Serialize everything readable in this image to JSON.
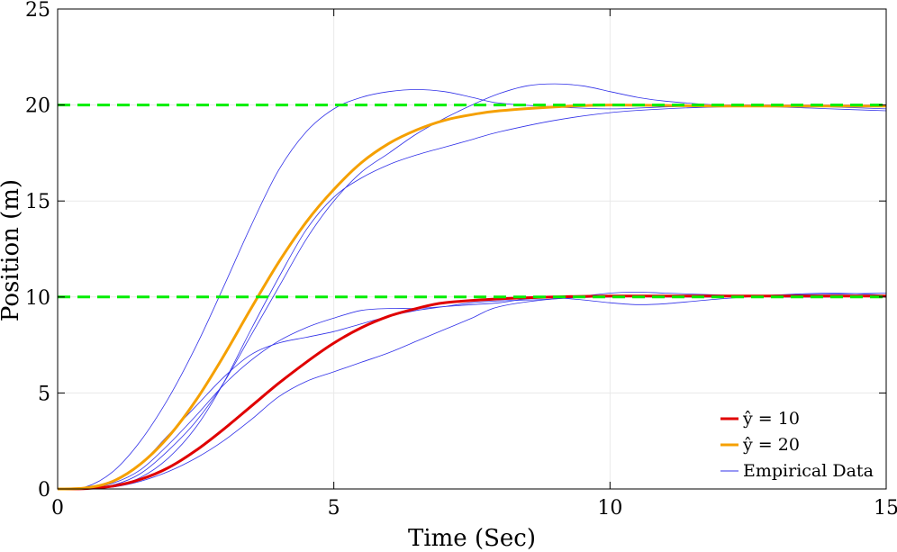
{
  "chart_data": {
    "type": "line",
    "title": "",
    "xlabel": "Time (Sec)",
    "ylabel": "Position (m)",
    "xlim": [
      0,
      15
    ],
    "ylim": [
      0,
      25
    ],
    "xticks": [
      0,
      5,
      10,
      15
    ],
    "yticks": [
      0,
      5,
      10,
      15,
      20,
      25
    ],
    "grid": true,
    "legend_position": "bottom-right",
    "references": [
      {
        "name": "reference-10",
        "y": 10,
        "color": "#00ee00",
        "style": "dashed"
      },
      {
        "name": "reference-20",
        "y": 20,
        "color": "#00ee00",
        "style": "dashed"
      }
    ],
    "series": [
      {
        "name": "y-hat-10",
        "legend": "ŷ = 10",
        "color": "#e00000",
        "width": 3,
        "x": [
          0,
          0.5,
          1,
          1.5,
          2,
          2.5,
          3,
          3.5,
          4,
          4.5,
          5,
          5.5,
          6,
          6.5,
          7,
          8,
          9,
          10,
          12,
          15
        ],
        "y": [
          0,
          0.02,
          0.15,
          0.5,
          1.1,
          2.0,
          3.1,
          4.3,
          5.5,
          6.6,
          7.6,
          8.4,
          9.0,
          9.4,
          9.7,
          9.9,
          10.0,
          10.05,
          10.05,
          10.05
        ]
      },
      {
        "name": "y-hat-20",
        "legend": "ŷ = 20",
        "color": "#f5a000",
        "width": 3,
        "x": [
          0,
          0.5,
          1,
          1.5,
          2,
          2.5,
          3,
          3.5,
          4,
          4.5,
          5,
          5.5,
          6,
          6.5,
          7,
          7.5,
          8,
          9,
          10,
          12,
          15
        ],
        "y": [
          0,
          0.05,
          0.4,
          1.3,
          2.7,
          4.6,
          6.9,
          9.4,
          11.8,
          13.9,
          15.6,
          17.0,
          18.0,
          18.7,
          19.2,
          19.5,
          19.7,
          19.9,
          20.0,
          19.95,
          19.95
        ]
      },
      {
        "name": "empirical-run-1",
        "color": "#3030e8",
        "width": 0.8,
        "x": [
          0,
          0.5,
          1,
          1.5,
          2,
          2.5,
          3,
          3.5,
          4,
          4.5,
          5,
          5.5,
          6,
          6.5,
          7,
          7.5,
          8,
          9,
          10,
          11,
          12,
          13,
          14,
          15
        ],
        "y": [
          0,
          0.1,
          0.9,
          2.5,
          4.7,
          7.4,
          10.5,
          13.7,
          16.6,
          18.6,
          19.8,
          20.4,
          20.7,
          20.8,
          20.7,
          20.4,
          20.1,
          19.9,
          19.8,
          19.9,
          20.0,
          20.0,
          20.0,
          20.0
        ]
      },
      {
        "name": "empirical-run-2",
        "color": "#3030e8",
        "width": 0.8,
        "x": [
          0,
          0.5,
          1,
          1.5,
          2,
          2.5,
          3,
          3.5,
          4,
          4.5,
          5,
          5.5,
          6,
          6.5,
          7,
          7.5,
          8,
          8.5,
          9,
          9.5,
          10,
          10.5,
          11,
          12,
          13,
          14,
          15
        ],
        "y": [
          0,
          0.02,
          0.2,
          0.8,
          2.0,
          3.5,
          5.5,
          8.0,
          10.5,
          13.0,
          15.0,
          16.5,
          17.5,
          18.5,
          19.3,
          20.0,
          20.6,
          21.0,
          21.1,
          21.0,
          20.7,
          20.4,
          20.2,
          20.0,
          20.0,
          19.9,
          19.8
        ]
      },
      {
        "name": "empirical-run-3",
        "color": "#3030e8",
        "width": 0.8,
        "x": [
          0,
          0.5,
          1,
          1.5,
          2,
          2.5,
          3,
          3.5,
          4,
          4.5,
          5,
          5.5,
          6,
          6.5,
          7,
          7.5,
          8,
          9,
          10,
          11,
          12,
          13,
          14,
          15
        ],
        "y": [
          0,
          0.02,
          0.15,
          0.6,
          1.6,
          3.2,
          5.5,
          8.3,
          11.0,
          13.5,
          15.2,
          16.2,
          16.9,
          17.4,
          17.8,
          18.2,
          18.6,
          19.2,
          19.6,
          19.8,
          19.9,
          19.9,
          19.8,
          19.7
        ]
      },
      {
        "name": "empirical-run-4",
        "color": "#3030e8",
        "width": 0.8,
        "x": [
          0,
          0.5,
          1,
          1.5,
          2,
          2.5,
          3,
          3.5,
          4,
          4.5,
          5,
          5.5,
          6,
          6.5,
          7,
          7.5,
          8,
          9,
          10,
          10.5,
          11,
          12,
          13,
          14,
          15
        ],
        "y": [
          0,
          0.05,
          0.4,
          1.3,
          2.8,
          4.3,
          5.8,
          7.0,
          7.6,
          7.9,
          8.2,
          8.6,
          9.0,
          9.3,
          9.5,
          9.7,
          9.8,
          9.9,
          10.2,
          10.25,
          10.2,
          10.1,
          10.0,
          10.0,
          10.05
        ]
      },
      {
        "name": "empirical-run-5",
        "color": "#3030e8",
        "width": 0.8,
        "x": [
          0,
          0.5,
          1,
          1.5,
          2,
          2.5,
          3,
          3.5,
          4,
          4.5,
          5,
          5.5,
          6,
          6.5,
          7,
          7.5,
          8,
          8.5,
          9,
          9.5,
          10,
          10.5,
          11,
          12,
          13,
          14,
          15
        ],
        "y": [
          0,
          0.03,
          0.3,
          1.0,
          2.3,
          3.8,
          5.4,
          6.7,
          7.7,
          8.4,
          8.9,
          9.3,
          9.4,
          9.4,
          9.5,
          9.6,
          9.7,
          9.9,
          9.95,
          9.85,
          9.7,
          9.6,
          9.65,
          9.9,
          10.1,
          10.2,
          10.1
        ]
      },
      {
        "name": "empirical-run-6",
        "color": "#3030e8",
        "width": 0.8,
        "x": [
          0,
          0.5,
          1,
          1.5,
          2,
          2.5,
          3,
          3.5,
          4,
          4.5,
          5,
          5.5,
          6,
          6.5,
          7,
          7.5,
          8,
          9,
          10,
          11,
          12,
          13,
          14,
          15
        ],
        "y": [
          0,
          0.01,
          0.1,
          0.4,
          0.9,
          1.6,
          2.5,
          3.6,
          4.8,
          5.6,
          6.1,
          6.6,
          7.1,
          7.7,
          8.3,
          8.9,
          9.5,
          9.9,
          10.0,
          10.0,
          10.0,
          10.1,
          10.15,
          10.2
        ]
      }
    ],
    "legend": [
      {
        "label": "ŷ = 10",
        "color": "#e00000",
        "width": 3
      },
      {
        "label": "ŷ = 20",
        "color": "#f5a000",
        "width": 3
      },
      {
        "label": "Empirical Data",
        "color": "#3030e8",
        "width": 1
      }
    ]
  }
}
